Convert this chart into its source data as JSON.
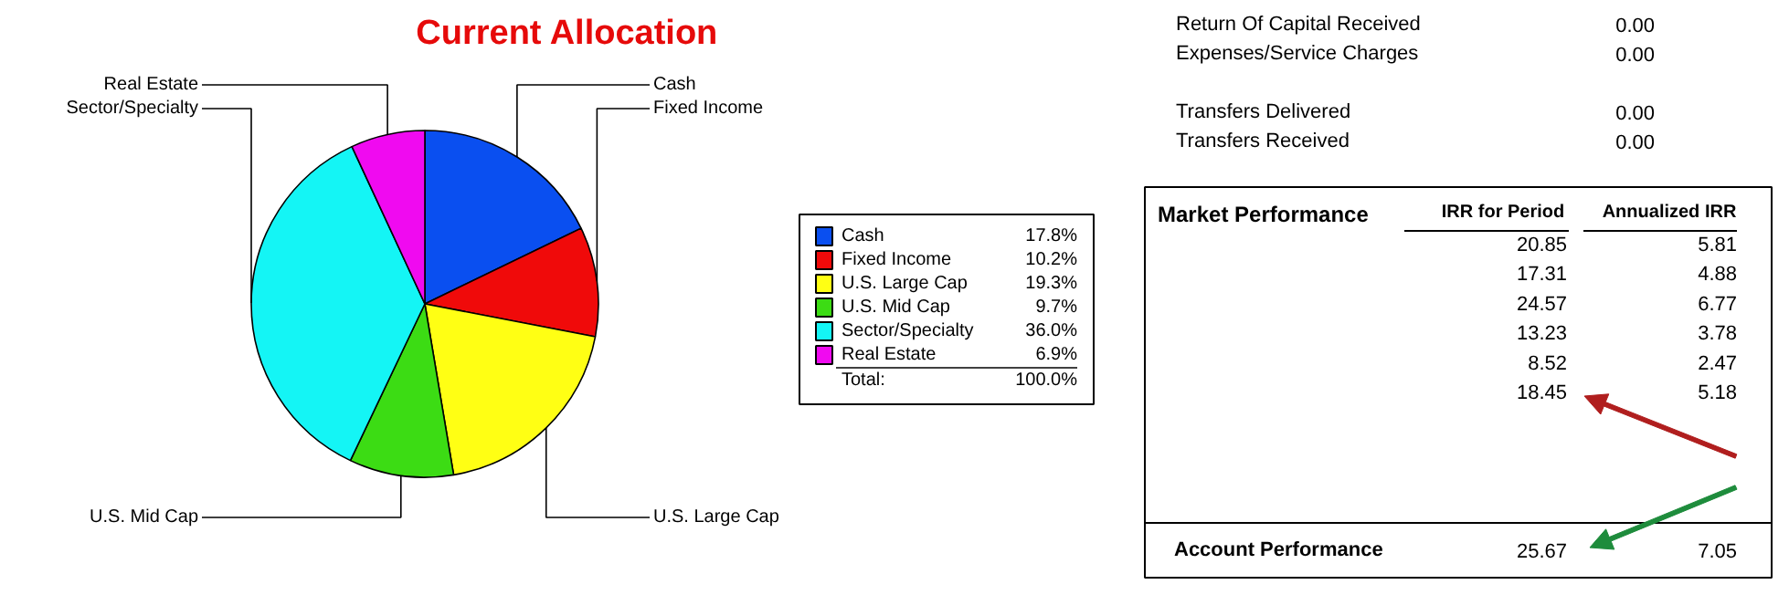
{
  "chart_data": [
    {
      "type": "pie",
      "title": "Current Allocation",
      "categories": [
        "Cash",
        "Fixed Income",
        "U.S. Large Cap",
        "U.S. Mid Cap",
        "Sector/Specialty",
        "Real Estate"
      ],
      "values": [
        17.8,
        10.2,
        19.3,
        9.7,
        36.0,
        6.9
      ],
      "value_labels": [
        "17.8%",
        "10.2%",
        "19.3%",
        "9.7%",
        "36.0%",
        "6.9%"
      ],
      "colors": [
        "#0a4ff0",
        "#f00a0a",
        "#ffff14",
        "#3cdc14",
        "#14f5f5",
        "#f00af0"
      ],
      "legend": "right",
      "annotations": [
        "Total:",
        "100.0%"
      ]
    },
    {
      "type": "other",
      "title": "Market Performance",
      "annotations": [
        "Return Of Capital Received",
        "0.00",
        "Expenses/Service Charges",
        "0.00",
        "Transfers Delivered",
        "0.00",
        "Transfers Received",
        "0.00",
        "IRR for Period",
        "Annualized IRR",
        "20.85",
        "5.81",
        "17.31",
        "4.88",
        "24.57",
        "6.77",
        "13.23",
        "3.78",
        "8.52",
        "2.47",
        "18.45",
        "5.18",
        "Account Performance",
        "25.67",
        "7.05"
      ]
    }
  ]
}
